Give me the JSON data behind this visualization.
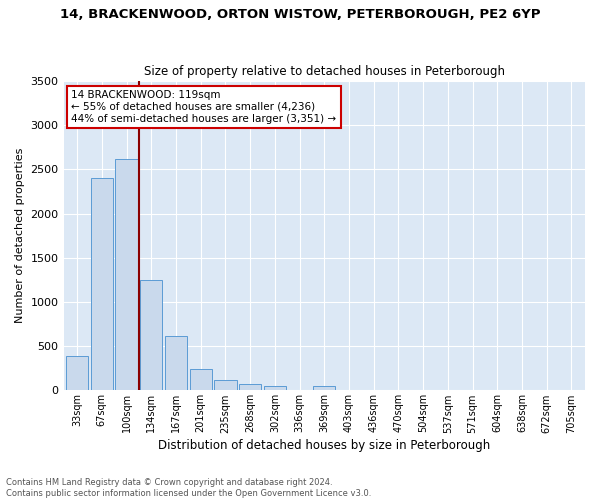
{
  "title": "14, BRACKENWOOD, ORTON WISTOW, PETERBOROUGH, PE2 6YP",
  "subtitle": "Size of property relative to detached houses in Peterborough",
  "xlabel": "Distribution of detached houses by size in Peterborough",
  "ylabel": "Number of detached properties",
  "footer_line1": "Contains HM Land Registry data © Crown copyright and database right 2024.",
  "footer_line2": "Contains public sector information licensed under the Open Government Licence v3.0.",
  "annotation_line1": "14 BRACKENWOOD: 119sqm",
  "annotation_line2": "← 55% of detached houses are smaller (4,236)",
  "annotation_line3": "44% of semi-detached houses are larger (3,351) →",
  "bar_color": "#c9d9ec",
  "bar_edge_color": "#5b9bd5",
  "vline_color": "#8b0000",
  "background_color": "#dce8f5",
  "annotation_box_color": "#ffffff",
  "annotation_box_edge": "#cc0000",
  "categories": [
    "33sqm",
    "67sqm",
    "100sqm",
    "134sqm",
    "167sqm",
    "201sqm",
    "235sqm",
    "268sqm",
    "302sqm",
    "336sqm",
    "369sqm",
    "403sqm",
    "436sqm",
    "470sqm",
    "504sqm",
    "537sqm",
    "571sqm",
    "604sqm",
    "638sqm",
    "672sqm",
    "705sqm"
  ],
  "values": [
    390,
    2400,
    2620,
    1250,
    620,
    240,
    120,
    75,
    50,
    0,
    55,
    0,
    0,
    0,
    0,
    0,
    0,
    0,
    0,
    0,
    0
  ],
  "ylim": [
    0,
    3500
  ],
  "yticks": [
    0,
    500,
    1000,
    1500,
    2000,
    2500,
    3000,
    3500
  ],
  "vline_index": 2.5
}
